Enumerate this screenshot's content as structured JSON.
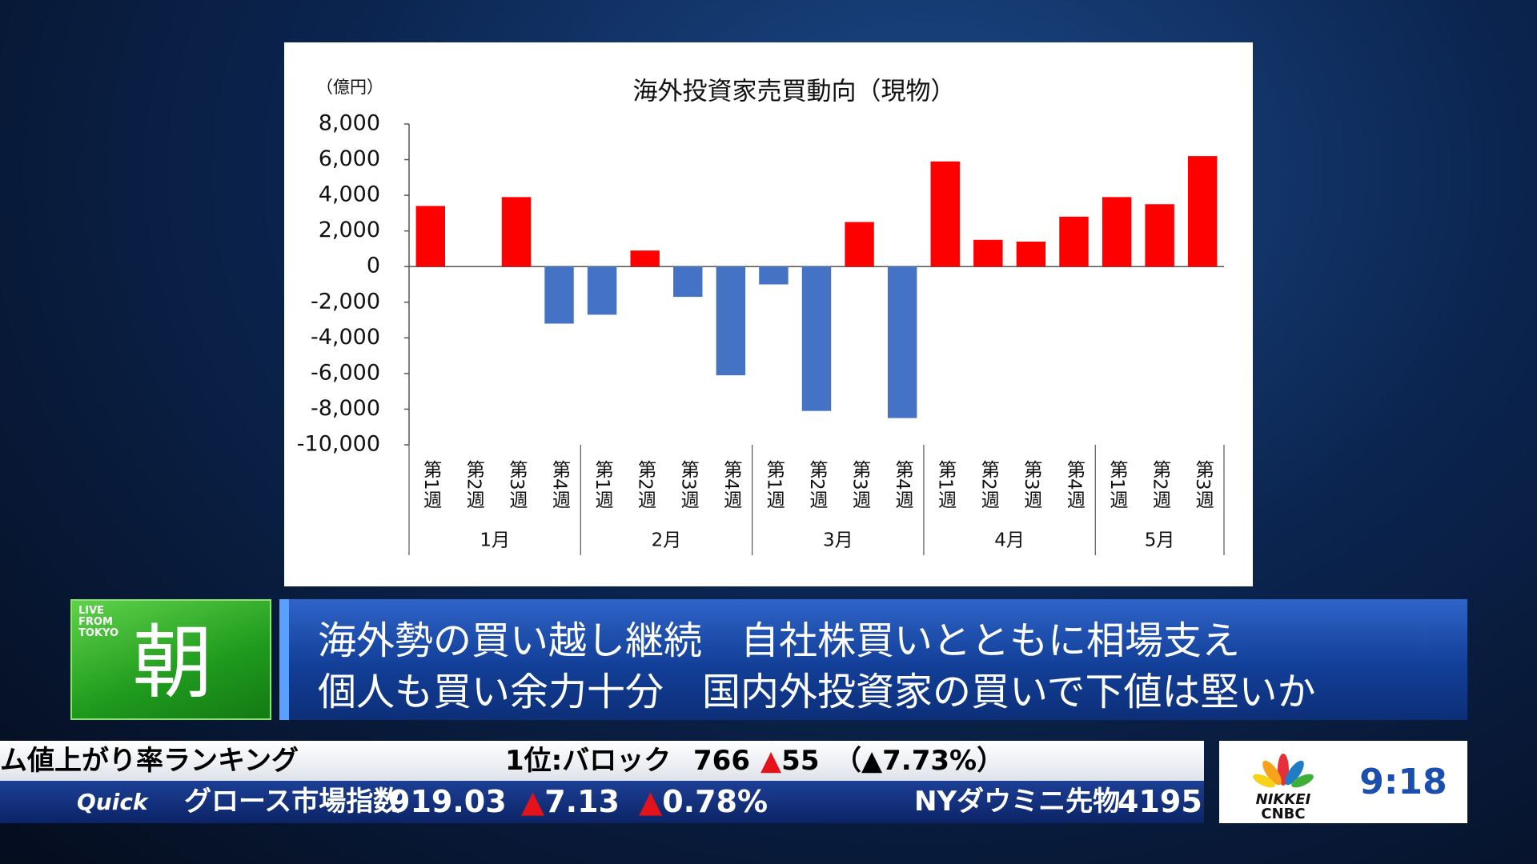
{
  "chart_data": {
    "type": "bar",
    "title": "海外投資家売買動向（現物）",
    "y_unit": "（億円）",
    "categories": [
      "第1週",
      "第2週",
      "第3週",
      "第4週",
      "第1週",
      "第2週",
      "第3週",
      "第4週",
      "第1週",
      "第2週",
      "第3週",
      "第4週",
      "第1週",
      "第2週",
      "第3週",
      "第4週",
      "第1週",
      "第2週",
      "第3週"
    ],
    "category_groups": [
      "1月",
      "2月",
      "3月",
      "4月",
      "5月"
    ],
    "values": [
      3400,
      0,
      3900,
      -3200,
      -2700,
      900,
      -1700,
      -6100,
      -1000,
      -8100,
      2500,
      -8500,
      5900,
      1500,
      1400,
      2800,
      3900,
      3500,
      6200
    ],
    "positive_color": "#ff0000",
    "negative_color": "#4472c4",
    "ylim": [
      -10000,
      8000
    ],
    "yticks": [
      {
        "value": -10000,
        "label": "-10,000"
      },
      {
        "value": -8000,
        "label": "-8,000"
      },
      {
        "value": -6000,
        "label": "-6,000"
      },
      {
        "value": -4000,
        "label": "-4,000"
      },
      {
        "value": -2000,
        "label": "-2,000"
      },
      0,
      {
        "value": 2000,
        "label": "2,000"
      },
      {
        "value": 4000,
        "label": "4,000"
      },
      {
        "value": 6000,
        "label": "6,000"
      },
      {
        "value": 8000,
        "label": "8,000"
      }
    ]
  },
  "program": {
    "badge": "LIVE FROM TOKYO",
    "name": "朝"
  },
  "headline": {
    "lines": [
      "海外勢の買い越し継続　自社株買いとともに相場支え",
      "個人も買い余力十分　国内外投資家の買いで下値は堅いか"
    ]
  },
  "ticker": {
    "ranking_title": "ム値上がり率ランキング",
    "ranking_item": "1位:バロック",
    "price": "766",
    "change": "▲55",
    "change_pct": "（▲7.73%）",
    "source": "Quick",
    "index_name": "グロース市場指数",
    "index_value": "919.03",
    "index_change": "▲7.13",
    "index_change_pct": "▲0.78%",
    "futures_name": "NYダウミニ先物",
    "futures_value": "4195"
  },
  "logo": {
    "line1": "NIKKEI",
    "line2": "CNBC"
  },
  "clock": "9:18"
}
